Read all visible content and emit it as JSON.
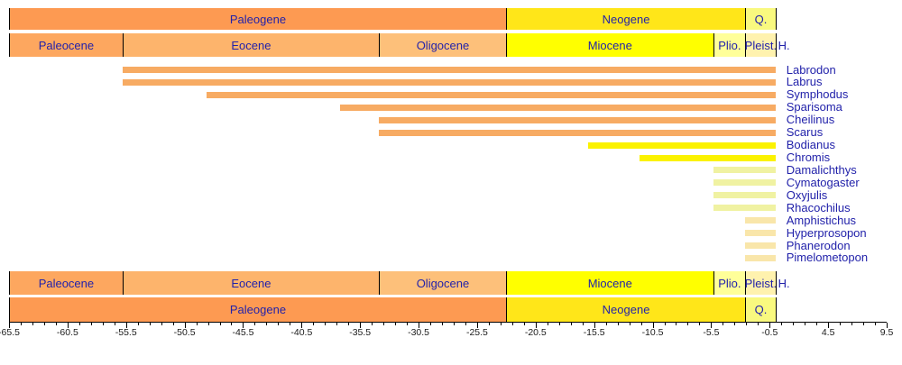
{
  "colors": {
    "taxon_label_text": "#2222AA",
    "stage_label_text": "#2222AA",
    "axis_text": "#1a1a1a",
    "axis_line": "#000000",
    "background": "#ffffff",
    "bar_eocene_origin": "#F7AB63",
    "bar_miocene_origin": "#FBF200",
    "bar_pliocene_origin": "#F0F2A2",
    "bar_pleistocene_origin": "#F9E6AA"
  },
  "chart_data": {
    "type": "bar",
    "subtype": "taxon-range-chart",
    "title": "",
    "xlabel": "",
    "ylabel": "",
    "axis": {
      "min": -65.5,
      "max": 9.5,
      "major_tick_step": 5,
      "minor_tick_step": 1,
      "major_tick_labels": [
        "-65.5",
        "-60.5",
        "-55.5",
        "-50.5",
        "-45.5",
        "-40.5",
        "-35.5",
        "-30.5",
        "-25.5",
        "-20.5",
        "-15.5",
        "-10.5",
        "-5.5",
        "-0.5",
        "4.5",
        "9.5"
      ],
      "major_tick_values": [
        -65.5,
        -60.5,
        -55.5,
        -50.5,
        -45.5,
        -40.5,
        -35.5,
        -30.5,
        -25.5,
        -20.5,
        -15.5,
        -10.5,
        -5.5,
        -0.5,
        4.5,
        9.5
      ]
    },
    "periods": [
      {
        "name": "Paleogene",
        "start": -65.5,
        "end": -23.03,
        "color": "#FD9A52"
      },
      {
        "name": "Neogene",
        "start": -23.03,
        "end": -2.588,
        "color": "#FFE619"
      },
      {
        "name": "Q.",
        "start": -2.588,
        "end": 0,
        "color": "#F9F97F"
      }
    ],
    "epochs": [
      {
        "name": "Paleocene",
        "start": -65.5,
        "end": -55.8,
        "color": "#FDA75F"
      },
      {
        "name": "Eocene",
        "start": -55.8,
        "end": -33.9,
        "color": "#FDB46C"
      },
      {
        "name": "Oligocene",
        "start": -33.9,
        "end": -23.03,
        "color": "#FDC07A"
      },
      {
        "name": "Miocene",
        "start": -23.03,
        "end": -5.33,
        "color": "#FFFF00"
      },
      {
        "name": "Plio.",
        "start": -5.33,
        "end": -2.588,
        "color": "#FFFF99"
      },
      {
        "name": "Pleist.",
        "start": -2.588,
        "end": -0.012,
        "color": "#FFF2AE"
      },
      {
        "name": "H.",
        "start": -0.012,
        "end": 0,
        "color": "#FEF2E0",
        "label_outside": true
      }
    ],
    "taxa": [
      {
        "name": "Labrodon",
        "start": -55.8,
        "end": 0,
        "color": "#F7AB63"
      },
      {
        "name": "Labrus",
        "start": -55.8,
        "end": 0,
        "color": "#F7AB63"
      },
      {
        "name": "Symphodus",
        "start": -48.6,
        "end": 0,
        "color": "#F7AB63"
      },
      {
        "name": "Sparisoma",
        "start": -37.2,
        "end": 0,
        "color": "#F7AB63"
      },
      {
        "name": "Cheilinus",
        "start": -33.9,
        "end": 0,
        "color": "#F7AB63"
      },
      {
        "name": "Scarus",
        "start": -33.9,
        "end": 0,
        "color": "#F7AB63"
      },
      {
        "name": "Bodianus",
        "start": -16.0,
        "end": 0,
        "color": "#FBF200"
      },
      {
        "name": "Chromis",
        "start": -11.6,
        "end": 0,
        "color": "#FBF200"
      },
      {
        "name": "Damalichthys",
        "start": -5.33,
        "end": 0,
        "color": "#F0F2A2"
      },
      {
        "name": "Cymatogaster",
        "start": -5.33,
        "end": 0,
        "color": "#F0F2A2"
      },
      {
        "name": "Oxyjulis",
        "start": -5.33,
        "end": 0,
        "color": "#F0F2A2"
      },
      {
        "name": "Rhacochilus",
        "start": -5.33,
        "end": 0,
        "color": "#F0F2A2"
      },
      {
        "name": "Amphistichus",
        "start": -2.588,
        "end": 0,
        "color": "#F9E6AA"
      },
      {
        "name": "Hyperprosopon",
        "start": -2.588,
        "end": 0,
        "color": "#F9E6AA"
      },
      {
        "name": "Phanerodon",
        "start": -2.588,
        "end": 0,
        "color": "#F9E6AA"
      },
      {
        "name": "Pimelometopon",
        "start": -2.588,
        "end": 0,
        "color": "#F9E6AA"
      }
    ],
    "layout_hints": {
      "grid": false,
      "legend": false,
      "bars_end_at_present": true,
      "stage_rows_mirrored_top_and_bottom": true
    }
  }
}
